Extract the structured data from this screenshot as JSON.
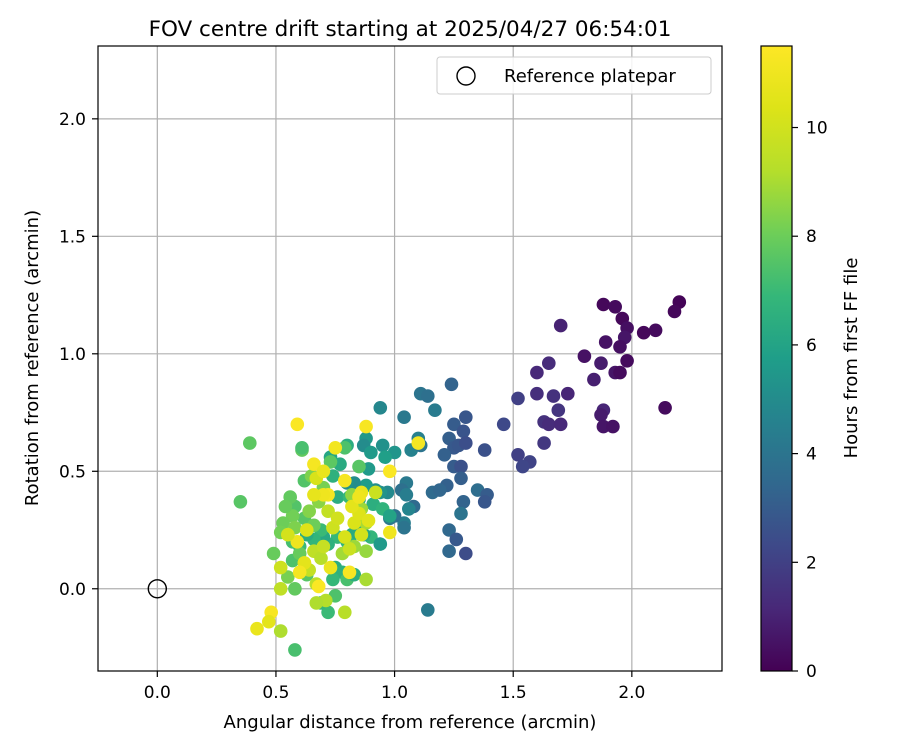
{
  "chart_data": {
    "type": "scatter",
    "title": "FOV centre drift starting at 2025/04/27 06:54:01",
    "xlabel": "Angular distance from reference (arcmin)",
    "ylabel": "Rotation from reference (arcmin)",
    "xlim": [
      -0.25,
      2.38
    ],
    "ylim": [
      -0.35,
      2.31
    ],
    "xticks": [
      "0.0",
      "0.5",
      "1.0",
      "1.5",
      "2.0"
    ],
    "yticks": [
      "0.0",
      "0.5",
      "1.0",
      "1.5",
      "2.0"
    ],
    "grid": true,
    "legend": {
      "position": "top-right",
      "entries": [
        "Reference platepar"
      ]
    },
    "reference_point": {
      "x": 0.0,
      "y": 0.0
    },
    "colorbar": {
      "label": "Hours from first FF file",
      "range": [
        0,
        11.5
      ],
      "ticks": [
        "0",
        "2",
        "4",
        "6",
        "8",
        "10"
      ],
      "colormap": "viridis"
    },
    "points_note": "x, y, hours",
    "points": [
      [
        1.88,
        1.21,
        0.2
      ],
      [
        1.93,
        1.2,
        0.3
      ],
      [
        1.96,
        1.15,
        0.2
      ],
      [
        2.2,
        1.22,
        0.1
      ],
      [
        2.18,
        1.18,
        0.2
      ],
      [
        1.98,
        1.11,
        0.4
      ],
      [
        2.1,
        1.1,
        0.3
      ],
      [
        2.05,
        1.09,
        0.2
      ],
      [
        1.89,
        1.05,
        0.5
      ],
      [
        1.97,
        1.07,
        0.6
      ],
      [
        1.95,
        1.03,
        0.4
      ],
      [
        1.8,
        0.99,
        0.5
      ],
      [
        1.98,
        0.97,
        0.3
      ],
      [
        1.87,
        0.96,
        0.8
      ],
      [
        1.93,
        0.92,
        0.6
      ],
      [
        1.84,
        0.89,
        0.9
      ],
      [
        1.95,
        0.92,
        0.3
      ],
      [
        1.7,
        1.12,
        1.0
      ],
      [
        1.65,
        0.96,
        1.3
      ],
      [
        1.6,
        0.92,
        1.2
      ],
      [
        1.67,
        0.82,
        1.5
      ],
      [
        1.73,
        0.83,
        1.1
      ],
      [
        1.6,
        0.83,
        1.4
      ],
      [
        1.69,
        0.76,
        1.6
      ],
      [
        1.88,
        0.76,
        1.1
      ],
      [
        1.87,
        0.74,
        0.8
      ],
      [
        2.14,
        0.77,
        0.3
      ],
      [
        1.63,
        0.71,
        1.5
      ],
      [
        1.65,
        0.7,
        1.3
      ],
      [
        1.7,
        0.7,
        1.2
      ],
      [
        1.88,
        0.69,
        0.6
      ],
      [
        1.92,
        0.69,
        0.5
      ],
      [
        1.63,
        0.62,
        1.7
      ],
      [
        1.52,
        0.81,
        2.0
      ],
      [
        1.46,
        0.7,
        2.3
      ],
      [
        1.52,
        0.57,
        2.0
      ],
      [
        1.57,
        0.54,
        2.1
      ],
      [
        1.54,
        0.52,
        2.2
      ],
      [
        1.38,
        0.59,
        2.6
      ],
      [
        1.24,
        0.87,
        3.3
      ],
      [
        1.3,
        0.73,
        2.8
      ],
      [
        1.25,
        0.7,
        3.0
      ],
      [
        1.29,
        0.67,
        2.7
      ],
      [
        1.23,
        0.64,
        3.1
      ],
      [
        1.25,
        0.6,
        2.9
      ],
      [
        1.21,
        0.57,
        3.2
      ],
      [
        1.27,
        0.61,
        2.8
      ],
      [
        1.3,
        0.62,
        2.5
      ],
      [
        1.25,
        0.52,
        3.0
      ],
      [
        1.28,
        0.52,
        2.6
      ],
      [
        1.28,
        0.47,
        3.1
      ],
      [
        1.22,
        0.44,
        3.2
      ],
      [
        1.16,
        0.41,
        3.6
      ],
      [
        1.19,
        0.42,
        3.4
      ],
      [
        1.35,
        0.42,
        3.7
      ],
      [
        1.39,
        0.4,
        3.0
      ],
      [
        1.38,
        0.37,
        2.8
      ],
      [
        1.29,
        0.37,
        3.3
      ],
      [
        1.28,
        0.32,
        4.0
      ],
      [
        1.23,
        0.25,
        3.5
      ],
      [
        1.26,
        0.21,
        2.9
      ],
      [
        1.3,
        0.15,
        2.4
      ],
      [
        1.23,
        0.16,
        3.5
      ],
      [
        1.14,
        -0.09,
        4.3
      ],
      [
        1.11,
        0.83,
        4.0
      ],
      [
        1.14,
        0.82,
        3.8
      ],
      [
        1.17,
        0.76,
        4.3
      ],
      [
        1.04,
        0.73,
        4.2
      ],
      [
        1.1,
        0.64,
        4.5
      ],
      [
        1.07,
        0.59,
        4.6
      ],
      [
        1.11,
        0.61,
        4.0
      ],
      [
        1.05,
        0.45,
        4.2
      ],
      [
        1.03,
        0.42,
        3.8
      ],
      [
        1.05,
        0.4,
        4.4
      ],
      [
        1.08,
        0.35,
        3.6
      ],
      [
        1.06,
        0.34,
        4.7
      ],
      [
        1.04,
        0.28,
        4.4
      ],
      [
        1.04,
        0.26,
        4.0
      ],
      [
        1.0,
        0.31,
        3.9
      ],
      [
        0.98,
        0.3,
        4.2
      ],
      [
        0.94,
        0.77,
        4.8
      ],
      [
        0.95,
        0.61,
        5.2
      ],
      [
        1.0,
        0.58,
        5.4
      ],
      [
        0.96,
        0.56,
        5.8
      ],
      [
        0.88,
        0.64,
        5.5
      ],
      [
        0.87,
        0.61,
        5.0
      ],
      [
        0.9,
        0.58,
        5.6
      ],
      [
        0.92,
        0.42,
        5.1
      ],
      [
        0.97,
        0.41,
        4.9
      ],
      [
        0.94,
        0.41,
        5.3
      ],
      [
        0.88,
        0.44,
        5.7
      ],
      [
        0.83,
        0.45,
        5.0
      ],
      [
        0.8,
        0.45,
        5.2
      ],
      [
        0.89,
        0.51,
        5.6
      ],
      [
        0.8,
        0.61,
        6.4
      ],
      [
        0.77,
        0.53,
        6.3
      ],
      [
        0.73,
        0.56,
        6.1
      ],
      [
        0.74,
        0.48,
        6.6
      ],
      [
        0.76,
        0.39,
        6.4
      ],
      [
        0.81,
        0.39,
        6.9
      ],
      [
        0.85,
        0.38,
        6.2
      ],
      [
        0.91,
        0.36,
        6.5
      ],
      [
        0.95,
        0.34,
        6.7
      ],
      [
        0.98,
        0.31,
        6.0
      ],
      [
        0.9,
        0.22,
        6.8
      ],
      [
        0.94,
        0.19,
        5.6
      ],
      [
        0.87,
        0.23,
        6.1
      ],
      [
        0.84,
        0.26,
        6.5
      ],
      [
        0.82,
        0.23,
        6.3
      ],
      [
        0.8,
        0.2,
        6.7
      ],
      [
        0.76,
        0.22,
        6.9
      ],
      [
        0.72,
        0.19,
        6.6
      ],
      [
        0.7,
        0.22,
        6.2
      ],
      [
        0.69,
        0.25,
        7.0
      ],
      [
        0.66,
        0.21,
        6.8
      ],
      [
        0.63,
        0.23,
        6.4
      ],
      [
        0.57,
        0.2,
        7.2
      ],
      [
        0.6,
        0.18,
        7.0
      ],
      [
        0.75,
        0.09,
        6.4
      ],
      [
        0.78,
        0.07,
        6.6
      ],
      [
        0.74,
        0.04,
        6.9
      ],
      [
        0.8,
        0.04,
        7.3
      ],
      [
        0.83,
        0.06,
        6.5
      ],
      [
        0.75,
        -0.03,
        7.4
      ],
      [
        0.72,
        -0.1,
        7.0
      ],
      [
        0.69,
        -0.06,
        6.8
      ],
      [
        0.58,
        -0.26,
        7.3
      ],
      [
        0.58,
        0.0,
        7.8
      ],
      [
        0.63,
        0.06,
        7.6
      ],
      [
        0.57,
        0.12,
        7.4
      ],
      [
        0.6,
        0.15,
        7.9
      ],
      [
        0.62,
        0.3,
        7.6
      ],
      [
        0.58,
        0.35,
        7.5
      ],
      [
        0.56,
        0.39,
        7.8
      ],
      [
        0.57,
        0.31,
        8.1
      ],
      [
        0.54,
        0.35,
        7.9
      ],
      [
        0.53,
        0.28,
        8.0
      ],
      [
        0.62,
        0.46,
        7.5
      ],
      [
        0.61,
        0.59,
        7.8
      ],
      [
        0.61,
        0.6,
        7.3
      ],
      [
        0.39,
        0.62,
        7.7
      ],
      [
        0.35,
        0.37,
        7.6
      ],
      [
        0.49,
        0.15,
        7.9
      ],
      [
        0.55,
        0.05,
        8.2
      ],
      [
        0.52,
        0.24,
        8.1
      ],
      [
        0.58,
        0.26,
        8.3
      ],
      [
        0.66,
        0.27,
        8.0
      ],
      [
        0.64,
        0.33,
        8.4
      ],
      [
        0.68,
        0.37,
        8.5
      ],
      [
        0.7,
        0.43,
        8.2
      ],
      [
        0.65,
        0.48,
        8.3
      ],
      [
        0.73,
        0.54,
        7.7
      ],
      [
        0.79,
        0.6,
        7.4
      ],
      [
        0.85,
        0.52,
        7.6
      ],
      [
        0.82,
        0.4,
        8.6
      ],
      [
        0.86,
        0.34,
        8.8
      ],
      [
        0.88,
        0.28,
        9.0
      ],
      [
        0.83,
        0.18,
        8.8
      ],
      [
        0.78,
        0.15,
        8.9
      ],
      [
        0.88,
        0.16,
        8.7
      ],
      [
        0.88,
        0.04,
        9.0
      ],
      [
        0.79,
        -0.1,
        9.3
      ],
      [
        0.71,
        -0.05,
        9.2
      ],
      [
        0.67,
        -0.06,
        9.1
      ],
      [
        0.67,
        0.02,
        9.4
      ],
      [
        0.64,
        0.08,
        9.6
      ],
      [
        0.62,
        0.11,
        9.8
      ],
      [
        0.66,
        0.16,
        9.5
      ],
      [
        0.69,
        0.13,
        9.3
      ],
      [
        0.7,
        0.18,
        9.7
      ],
      [
        0.74,
        0.26,
        9.9
      ],
      [
        0.72,
        0.33,
        9.6
      ],
      [
        0.76,
        0.3,
        10.0
      ],
      [
        0.79,
        0.22,
        10.2
      ],
      [
        0.81,
        0.17,
        9.8
      ],
      [
        0.86,
        0.23,
        10.1
      ],
      [
        0.83,
        0.28,
        10.3
      ],
      [
        0.85,
        0.32,
        10.4
      ],
      [
        0.82,
        0.35,
        10.6
      ],
      [
        0.89,
        0.29,
        10.5
      ],
      [
        0.92,
        0.41,
        9.8
      ],
      [
        0.86,
        0.41,
        10.8
      ],
      [
        0.85,
        0.39,
        11.0
      ],
      [
        0.72,
        0.4,
        11.2
      ],
      [
        0.7,
        0.4,
        11.0
      ],
      [
        0.66,
        0.4,
        10.7
      ],
      [
        0.67,
        0.47,
        10.2
      ],
      [
        0.66,
        0.53,
        11.2
      ],
      [
        0.7,
        0.5,
        10.8
      ],
      [
        0.79,
        0.46,
        11.3
      ],
      [
        0.75,
        0.6,
        11.1
      ],
      [
        0.59,
        0.7,
        11.4
      ],
      [
        0.88,
        0.69,
        11.3
      ],
      [
        0.98,
        0.5,
        11.4
      ],
      [
        1.1,
        0.62,
        11.2
      ],
      [
        0.98,
        0.24,
        11.0
      ],
      [
        0.81,
        0.07,
        11.3
      ],
      [
        0.73,
        0.09,
        10.9
      ],
      [
        0.68,
        0.01,
        11.4
      ],
      [
        0.62,
        0.11,
        10.6
      ],
      [
        0.6,
        0.07,
        11.2
      ],
      [
        0.59,
        0.2,
        11.0
      ],
      [
        0.63,
        0.25,
        10.4
      ],
      [
        0.55,
        0.23,
        10.1
      ],
      [
        0.52,
        0.09,
        9.9
      ],
      [
        0.52,
        0.0,
        9.5
      ],
      [
        0.48,
        -0.1,
        11.3
      ],
      [
        0.47,
        -0.14,
        10.6
      ],
      [
        0.42,
        -0.17,
        10.8
      ],
      [
        0.52,
        -0.18,
        9.1
      ]
    ]
  }
}
